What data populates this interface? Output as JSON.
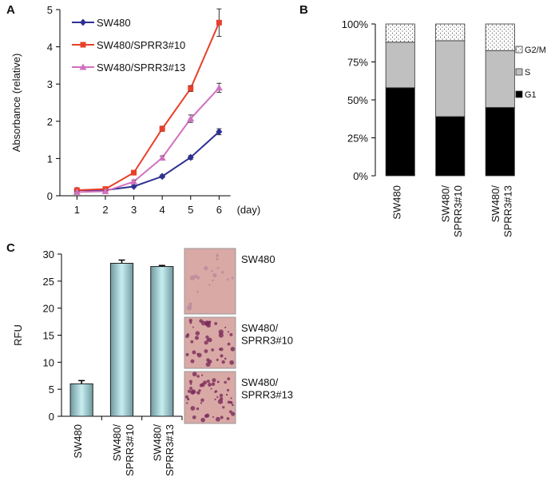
{
  "chart_data": [
    {
      "type": "line",
      "panel_label": "A",
      "ylabel": "Absorbance (relative)",
      "xlabel": "(day)",
      "x": [
        1,
        2,
        3,
        4,
        5,
        6
      ],
      "xlim": [
        0.4,
        6.4
      ],
      "xticks": [
        1,
        2,
        3,
        4,
        5,
        6
      ],
      "ylim": [
        0,
        5
      ],
      "yticks": [
        0,
        1,
        2,
        3,
        4,
        5
      ],
      "legend": "upper left",
      "series": [
        {
          "name": "SW480",
          "color": "#2e3192",
          "marker": "diamond",
          "values": [
            0.15,
            0.15,
            0.25,
            0.52,
            1.03,
            1.72
          ],
          "errors": [
            0.02,
            0.02,
            0.03,
            0.04,
            0.05,
            0.08
          ]
        },
        {
          "name": "SW480/SPRR3#10",
          "color": "#e8402a",
          "marker": "square",
          "values": [
            0.15,
            0.18,
            0.62,
            1.8,
            2.88,
            4.65
          ],
          "errors": [
            0.02,
            0.03,
            0.05,
            0.07,
            0.08,
            0.37
          ]
        },
        {
          "name": "SW480/SPRR3#13",
          "color": "#d070c0",
          "marker": "triangle",
          "values": [
            0.1,
            0.12,
            0.38,
            1.02,
            2.07,
            2.9
          ],
          "errors": [
            0.02,
            0.02,
            0.04,
            0.05,
            0.1,
            0.12
          ]
        }
      ]
    },
    {
      "type": "stacked_bar",
      "panel_label": "B",
      "categories": [
        "SW480",
        "SW480/SPRR3#10",
        "SW480/SPRR3#13"
      ],
      "ylim": [
        0,
        100
      ],
      "yticks": [
        {
          "value": 0,
          "label": "0%"
        },
        {
          "value": 25,
          "label": "25%"
        },
        {
          "value": 50,
          "label": "50%"
        },
        {
          "value": 75,
          "label": "75%"
        },
        {
          "value": 100,
          "label": "100%"
        }
      ],
      "legend": "right",
      "series": [
        {
          "name": "G1",
          "color": "#000000",
          "values": [
            58,
            39,
            45
          ]
        },
        {
          "name": "S",
          "color": "#c0c0c0",
          "values": [
            30,
            50,
            37.5
          ]
        },
        {
          "name": "G2/M",
          "color": "#ffffff",
          "hatch": "dots",
          "values": [
            12,
            11,
            17.5
          ]
        }
      ]
    },
    {
      "type": "bar",
      "panel_label": "C",
      "ylabel": "RFU",
      "categories": [
        "SW480",
        "SW480/SPRR3#10",
        "SW480/SPRR3#13"
      ],
      "values": [
        6,
        28.3,
        27.7
      ],
      "errors": [
        0.6,
        0.6,
        0.2
      ],
      "color": "#c8eef0",
      "ylim": [
        0,
        30
      ],
      "yticks": [
        0,
        5,
        10,
        15,
        20,
        25,
        30
      ]
    }
  ]
}
